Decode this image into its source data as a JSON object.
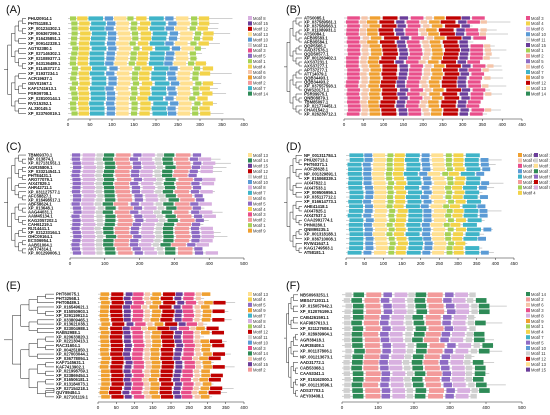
{
  "colors": {
    "Motif 1": "#a6d254",
    "Motif 2": "#f39a9a",
    "Motif 3": "#e94e8a",
    "Motif 4": "#f3d34a",
    "Motif 5": "#8e6bc4",
    "Motif 6": "#f5c4a8",
    "Motif 7": "#3fb4c8",
    "Motif 8": "#d8b0e0",
    "Motif 9": "#f0a030",
    "Motif 10": "#5b9bd5",
    "Motif 11": "#d0d0d0",
    "Motif 12": "#c00000",
    "Motif 13": "#ffe090",
    "Motif 14": "#2e8b57",
    "Motif 15": "#6a3d9a"
  },
  "panels": [
    {
      "label": "(A)",
      "axis_ticks": [
        "0",
        "50",
        "100",
        "150",
        "200",
        "250",
        "300",
        "350",
        "400"
      ],
      "legend": [
        "Motif 8",
        "Motif 15",
        "Motif 12",
        "Motif 13",
        "Motif 10",
        "Motif 11",
        "Motif 3",
        "Motif 5",
        "Motif 1",
        "Motif 4",
        "Motif 6",
        "Motif 9",
        "Motif 2",
        "Motif 7",
        "Motif 14"
      ],
      "genes": [
        "PHU20914.1",
        "PHT51188.1",
        "XP_001234302.1",
        "XP_006367299.1",
        "XP_016435851.1",
        "XP_009142328.1",
        "AGT02380.1",
        "XP_027146302.1",
        "XP_021089377.1",
        "XP_043136489.1",
        "XP_011453717.1",
        "XP_01937234.1",
        "ACR19637.1",
        "OEV01567.1",
        "KAF1741613.1",
        "PSR09708.1",
        "XP_028100144.1",
        "RVX15252.1",
        "ALJ30145.1",
        "XP_023760019.1"
      ]
    },
    {
      "label": "(B)",
      "axis_ticks": [
        "0",
        "50",
        "100",
        "150",
        "200",
        "250",
        "300",
        "350",
        "400",
        "450"
      ],
      "legend": [
        "Motif 3",
        "Motif 4",
        "Motif 8",
        "Motif 10",
        "Motif 11",
        "Motif 15",
        "Motif 1",
        "Motif 2",
        "Motif 5",
        "Motif 6",
        "Motif 7",
        "Motif 9",
        "Motif 12",
        "Motif 13",
        "Motif 14"
      ],
      "genes": [
        "ATS0085.1",
        "XP_037589561.1",
        "XP_037589563.1",
        "XP_011089931.1",
        "ATS0084.1",
        "AFB05583.1",
        "AFB05584.1",
        "QQP5565.1",
        "AAD37576.1",
        "QQD50577.1",
        "XP_001263402.1",
        "AXS37231.1",
        "AXS37277.1",
        "APT37277.1",
        "ATT14079.1",
        "QQB34493.1",
        "QQB34493.2",
        "XP_037557593.1",
        "QWS20171.1",
        "PSR09975.1",
        "QNB08879.1",
        "TBM85097.1",
        "XP_021774451.1",
        "CHA01542.1",
        "XP_026239712.1"
      ]
    },
    {
      "label": "(C)",
      "axis_ticks": [
        "0",
        "100",
        "200",
        "300",
        "400",
        "500"
      ],
      "legend": [
        "Motif 13",
        "Motif 14",
        "Motif 15",
        "Motif 12",
        "Motif 11",
        "Motif 10",
        "Motif 8",
        "Motif 7",
        "Motif 6",
        "Motif 5",
        "Motif 4",
        "Motif 3",
        "Motif 2",
        "Motif 1",
        "Motif 9"
      ],
      "genes": [
        "TBM69370.1",
        "NP_013874.1",
        "XP_027131551.1",
        "AGR35809.1",
        "XP_033214541.1",
        "PHT84431.1",
        "ARO77079.1",
        "AIX47829.1",
        "AHR42711.1",
        "XP_031127577.1",
        "AFC58827.1",
        "XP_016498517.1",
        "ABF58624.1",
        "XP_013648.1",
        "AAG44031.1",
        "AAM45134.1",
        "KAG2057202.1",
        "CAH61219.1",
        "RIJ14441.1",
        "XP_021233164.1",
        "OHC09164.1",
        "ECS06954.1",
        "AAB51004.1",
        "AKT74314.1",
        "XP_001299006.1"
      ]
    },
    {
      "label": "(D)",
      "axis_ticks": [
        "0",
        "50",
        "100",
        "150",
        "200",
        "250",
        "300",
        "350",
        "400",
        "450"
      ],
      "legend": [
        "Motif 9",
        "Motif 6",
        "Motif 3",
        "Motif 10",
        "Motif 7",
        "Motif 2",
        "Motif 1",
        "Motif 4",
        "Motif 15",
        "Motif 11",
        "Motif 13",
        "Motif 14",
        "Motif 5",
        "Motif 12",
        "Motif 8"
      ],
      "genes": [
        "NP_001311784.1",
        "PHU20713.1",
        "PHT60371.1",
        "AOF28628.1",
        "NP_001329891.1",
        "XP_015068339.1",
        "AIX47822.1",
        "AIX47533.1",
        "XP_009506956.1",
        "XP_035117712.1",
        "XP_016614773.1",
        "AHE41418.1",
        "AIX47825.1",
        "AIX47537.1",
        "CAA2991774.1",
        "PHN0280.1",
        "QNM99235.1",
        "XP_001318188.1",
        "XP_036710008.1",
        "RVW41647.1",
        "KAG1749563.1",
        "AT58181.1"
      ]
    },
    {
      "label": "(E)",
      "axis_ticks": [
        "0",
        "50",
        "100",
        "150",
        "200",
        "250",
        "300",
        "350",
        "400"
      ],
      "legend": [
        "Motif 13",
        "Motif 4",
        "Motif 5",
        "Motif 9",
        "Motif 7",
        "Motif 8",
        "Motif 1",
        "Motif 12",
        "Motif 11",
        "Motif 10",
        "Motif 3",
        "Motif 14",
        "Motif 6",
        "Motif 15",
        "Motif 2"
      ],
      "genes": [
        "PHT60075.1",
        "PHT32568.1",
        "PHT08489.1",
        "XP_016549621.1",
        "XP_015050903.1",
        "XP_029119913.1",
        "XP_033809465.1",
        "XP_013621038.1",
        "XP_023004988.1",
        "RAB52988.1",
        "XP_020633820.1",
        "XP_022130413.1",
        "RAC31604.1",
        "XP_004251850.1",
        "XP_027003044.1",
        "XP_036778094.1",
        "KAF7145631.1",
        "KAF7413902.1",
        "XP_021998759.1",
        "XP_023869454.1",
        "XP_016506181.1",
        "XP_013184073.1",
        "XP_027154218.1",
        "QUY89484.1",
        "XP_027101119.1"
      ]
    },
    {
      "label": "(F)",
      "axis_ticks": [
        "0",
        "100",
        "200",
        "300",
        "400",
        "500"
      ],
      "legend": [
        "Motif 14",
        "Motif 2",
        "Motif 6",
        "Motif 3",
        "Motif 8",
        "Motif 9",
        "Motif 1",
        "Motif 4",
        "Motif 7",
        "Motif 5",
        "Motif 10",
        "Motif 11",
        "Motif 12",
        "Motif 13",
        "Motif 15"
      ],
      "genes": [
        "NBS0963251.1",
        "MBS4713011.1",
        "XP_015057042.1",
        "XP_012076199.1",
        "CAB4261591.1",
        "KAF9837613.1",
        "XP_021127608.1",
        "XP_028939904.1",
        "AGR38418.1",
        "AUR38408.1",
        "XP_001137806.1",
        "NP_001213673.1",
        "AAD31772.1",
        "CAB53368.1",
        "CAA53341.1",
        "XP_015162000.1",
        "NP_001213596.1",
        "ADS37703.1",
        "AEY03408.1"
      ]
    }
  ]
}
